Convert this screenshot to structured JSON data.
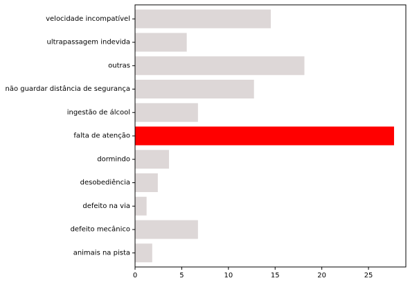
{
  "chart_data": {
    "type": "bar",
    "orientation": "horizontal",
    "categories": [
      "velocidade incompatível",
      "ultrapassagem indevida",
      "outras",
      "não guardar distância de segurança",
      "ingestão de álcool",
      "falta de atenção",
      "dormindo",
      "desobediência",
      "defeito na via",
      "defeito mecânico",
      "animais na pista"
    ],
    "values": [
      14.5,
      5.5,
      18.1,
      12.7,
      6.7,
      27.7,
      3.6,
      2.4,
      1.2,
      6.7,
      1.8
    ],
    "highlight_category": "falta de atenção",
    "colors": {
      "bar": "#ddd7d7",
      "highlight": "#ff0000"
    },
    "xlim": [
      0,
      29
    ],
    "xticks": [
      0,
      5,
      10,
      15,
      20,
      25
    ],
    "title": "",
    "xlabel": "",
    "ylabel": "",
    "grid": false
  }
}
